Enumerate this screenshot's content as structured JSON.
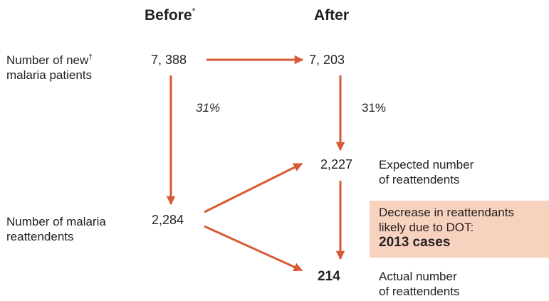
{
  "headers": {
    "before": "Before",
    "before_mark": "*",
    "after": "After"
  },
  "rows": {
    "new_patients": {
      "label_line1": "Number of new",
      "label_mark": "†",
      "label_line2": "malaria patients",
      "before_value": "7, 388",
      "after_value": "7, 203"
    },
    "percent": {
      "before": "31%",
      "after": "31%"
    },
    "expected": {
      "value": "2,227",
      "label_line1": "Expected number",
      "label_line2": "of reattendents"
    },
    "reattendents": {
      "label_line1": "Number of malaria",
      "label_line2": "reattendents",
      "before_value": "2,284"
    },
    "actual": {
      "value": "214",
      "label_line1": "Actual number",
      "label_line2": "of reattendents"
    }
  },
  "callout": {
    "line1": "Decrease in reattendants",
    "line2": "likely due to DOT:",
    "line3": "2013 cases"
  },
  "colors": {
    "arrow": "#d75a36",
    "callout_bg": "#f7d2bf",
    "text": "#231f20"
  }
}
